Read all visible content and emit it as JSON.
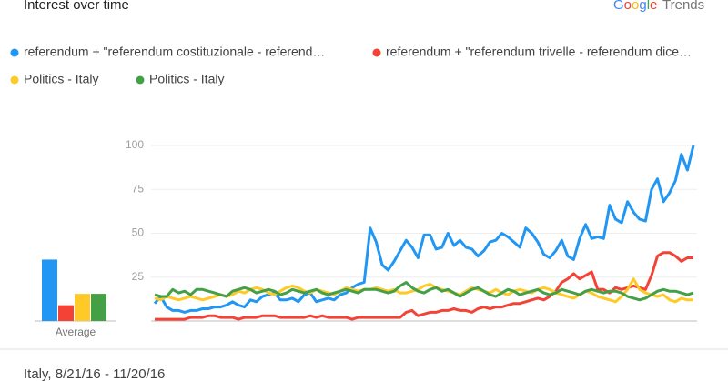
{
  "chart_data": {
    "type": "line",
    "title": "Interest over time",
    "brand": {
      "first": "Google",
      "second": "Trends"
    },
    "footer": "Italy, 8/21/16 - 11/20/16",
    "average_label": "Average",
    "ylim": [
      0,
      100
    ],
    "yticks": [
      25,
      50,
      75,
      100
    ],
    "grid": true,
    "series": [
      {
        "name": "referendum + \"referendum costituzionale - referend…",
        "color": "#2196f3",
        "average": 35,
        "values": [
          10,
          14,
          8,
          6,
          6,
          5,
          6,
          6,
          7,
          7,
          8,
          8,
          9,
          11,
          9,
          8,
          12,
          11,
          14,
          15,
          16,
          12,
          12,
          13,
          11,
          15,
          16,
          11,
          12,
          13,
          12,
          15,
          16,
          19,
          21,
          22,
          53,
          45,
          32,
          29,
          34,
          40,
          46,
          42,
          36,
          49,
          49,
          41,
          42,
          50,
          43,
          46,
          42,
          41,
          37,
          40,
          45,
          46,
          50,
          48,
          45,
          42,
          53,
          50,
          45,
          38,
          36,
          40,
          46,
          37,
          35,
          47,
          55,
          47,
          48,
          47,
          66,
          58,
          56,
          68,
          62,
          58,
          57,
          75,
          81,
          68,
          73,
          80,
          95,
          86,
          100
        ]
      },
      {
        "name": "referendum + \"referendum trivelle - referendum dice…",
        "color": "#f44336",
        "average": 9,
        "values": [
          1,
          1,
          1,
          1,
          1,
          1,
          2,
          2,
          2,
          3,
          3,
          2,
          2,
          2,
          1,
          2,
          2,
          2,
          3,
          3,
          3,
          2,
          2,
          2,
          2,
          2,
          3,
          2,
          3,
          2,
          2,
          2,
          2,
          1,
          2,
          2,
          2,
          2,
          2,
          2,
          2,
          2,
          5,
          6,
          3,
          4,
          5,
          5,
          6,
          6,
          7,
          6,
          6,
          5,
          7,
          8,
          7,
          8,
          8,
          9,
          10,
          10,
          11,
          12,
          13,
          12,
          14,
          17,
          22,
          24,
          27,
          24,
          26,
          28,
          18,
          18,
          16,
          19,
          18,
          19,
          20,
          19,
          18,
          26,
          37,
          39,
          39,
          37,
          34,
          36,
          36
        ]
      },
      {
        "name": "Politics - Italy",
        "color": "#ffca28",
        "average": 15.5,
        "values": [
          13,
          12,
          14,
          13,
          12,
          13,
          14,
          13,
          12,
          13,
          14,
          15,
          14,
          15,
          17,
          16,
          18,
          19,
          18,
          16,
          15,
          17,
          19,
          20,
          19,
          17,
          16,
          18,
          17,
          16,
          15,
          17,
          19,
          18,
          17,
          18,
          18,
          19,
          18,
          17,
          18,
          16,
          16,
          17,
          18,
          20,
          21,
          19,
          18,
          17,
          16,
          15,
          17,
          19,
          18,
          17,
          16,
          18,
          16,
          15,
          17,
          18,
          17,
          16,
          18,
          19,
          18,
          16,
          15,
          14,
          13,
          15,
          17,
          16,
          14,
          13,
          12,
          11,
          14,
          18,
          24,
          18,
          16,
          15,
          14,
          15,
          12,
          11,
          13,
          12,
          12
        ]
      },
      {
        "name": "Politics - Italy",
        "color": "#43a047",
        "average": 15.5,
        "values": [
          15,
          14,
          14,
          18,
          16,
          17,
          15,
          18,
          18,
          17,
          16,
          15,
          14,
          17,
          18,
          19,
          18,
          16,
          17,
          18,
          17,
          15,
          16,
          18,
          17,
          16,
          17,
          18,
          16,
          15,
          16,
          17,
          18,
          17,
          16,
          18,
          18,
          18,
          17,
          16,
          17,
          20,
          22,
          19,
          17,
          16,
          18,
          19,
          17,
          18,
          16,
          14,
          16,
          18,
          19,
          17,
          15,
          14,
          16,
          18,
          17,
          15,
          16,
          17,
          18,
          16,
          15,
          16,
          18,
          17,
          16,
          15,
          17,
          18,
          17,
          16,
          17,
          17,
          16,
          14,
          13,
          12,
          13,
          15,
          17,
          18,
          17,
          17,
          16,
          15,
          16
        ]
      }
    ]
  }
}
